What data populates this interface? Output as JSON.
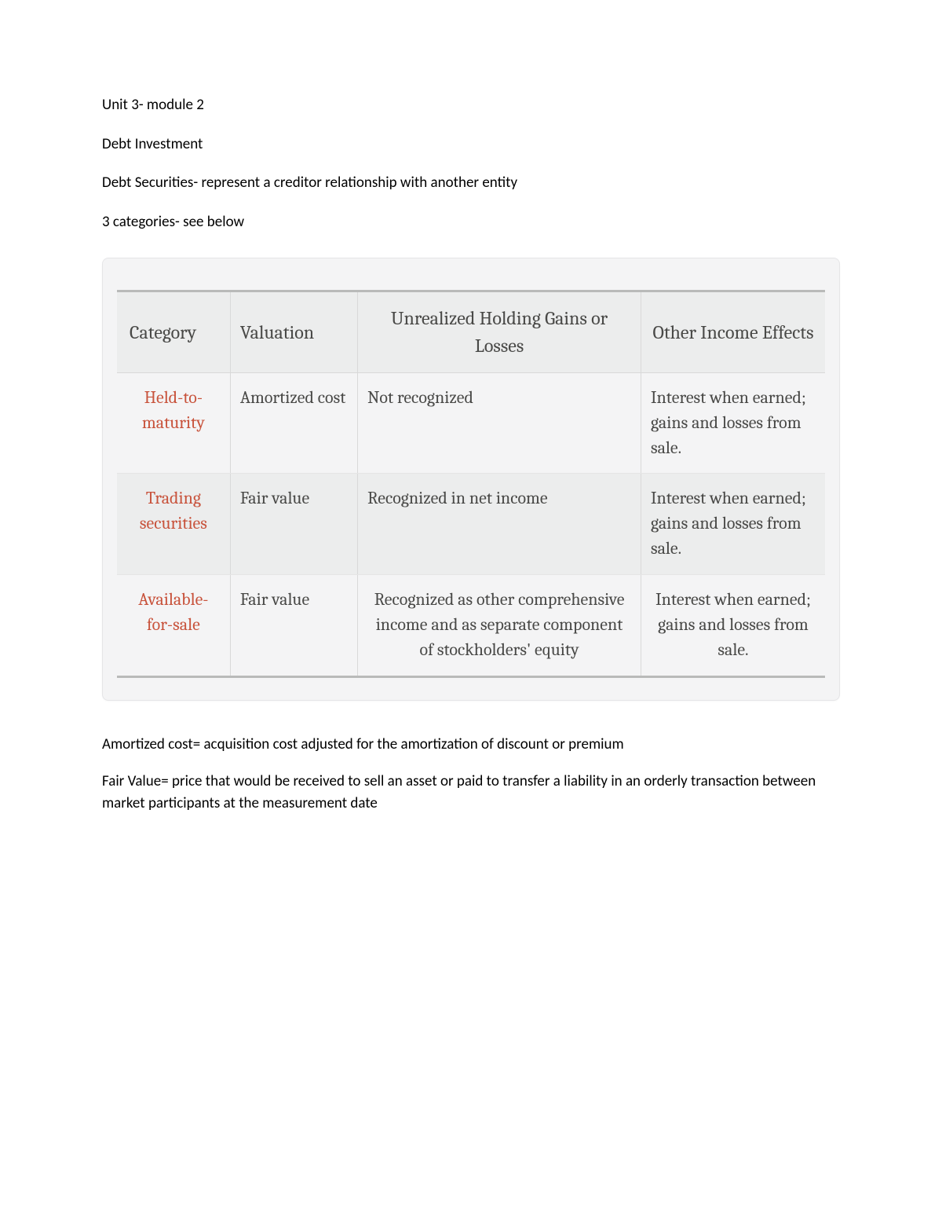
{
  "intro": {
    "line1": "Unit 3- module 2",
    "line2": "Debt Investment",
    "line3": "Debt Securities- represent a creditor relationship with another entity",
    "line4": "3 categories- see below"
  },
  "table": {
    "type": "table",
    "styling": {
      "card_background": "#f4f4f5",
      "card_border": "#e5e5e7",
      "header_background": "#eceded",
      "header_top_border": "#b9bab9",
      "bottom_border": "#b9bab9",
      "zebra_even_background": "#eceded",
      "cell_border": "#d9d9d9",
      "text_color": "#494947",
      "category_color": "#c8533c",
      "font_family": "Cambria, Georgia, serif",
      "header_font_size_pt": 18,
      "body_font_size_pt": 16,
      "column_widths_pct": [
        16,
        18,
        40,
        26
      ]
    },
    "columns": [
      "Category",
      "Valuation",
      "Unrealized Holding Gains or Losses",
      "Other Income Effects"
    ],
    "rows": [
      {
        "category": "Held-to-maturity",
        "valuation": "Amortized cost",
        "unrealized": "Not recognized",
        "other": "Interest when earned; gains and losses from sale."
      },
      {
        "category": "Trading securities",
        "valuation": "Fair value",
        "unrealized": "Recognized in net income",
        "other": "Interest when earned; gains and losses from sale."
      },
      {
        "category": "Available-for-sale",
        "valuation": "Fair value",
        "unrealized": "Recognized as other comprehensive income and as separate component of stockholders' equity",
        "other": "Interest when earned; gains and losses from sale."
      }
    ]
  },
  "defs": {
    "amortized": "Amortized cost= acquisition cost adjusted for the amortization of discount or premium",
    "fairvalue": "Fair Value= price that would be received to sell an asset or paid to transfer a liability in an orderly transaction between market participants at the measurement date"
  }
}
